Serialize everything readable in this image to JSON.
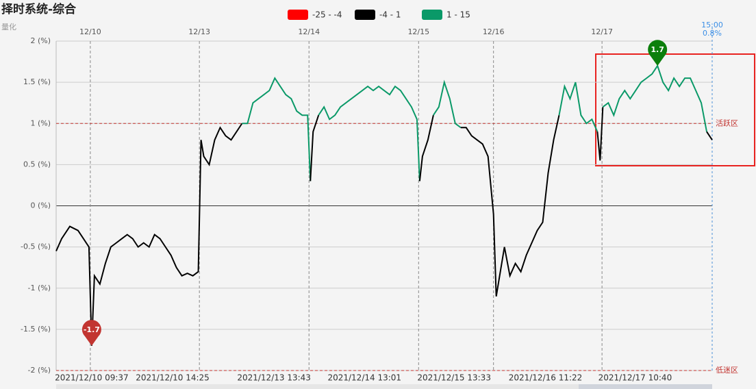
{
  "chart_data": {
    "type": "line",
    "title": "择时系统-综合",
    "subtitle": "量化",
    "pieces": [
      {
        "label": "-25 - -4",
        "min": -25,
        "max": -4,
        "color": "#ff0000"
      },
      {
        "label": "-4 - 1",
        "min": -4,
        "max": 1,
        "color": "#000000"
      },
      {
        "label": "1 - 15",
        "min": 1,
        "max": 15,
        "color": "#0a9968"
      }
    ],
    "xlim": [
      0,
      240
    ],
    "xticks": [
      {
        "value": 12.5,
        "label": "12/10"
      },
      {
        "value": 52.4,
        "label": "12/13"
      },
      {
        "value": 92.5,
        "label": "12/14"
      },
      {
        "value": 132.6,
        "label": "12/15"
      },
      {
        "value": 160,
        "label": "12/16"
      },
      {
        "value": 199.7,
        "label": "12/17"
      }
    ],
    "xticks_bottom": [
      {
        "value": 13,
        "label": "2021/12/10 09:37"
      },
      {
        "value": 42.6,
        "label": "2021/12/10 14:25"
      },
      {
        "value": 79.7,
        "label": "2021/12/13 13:43"
      },
      {
        "value": 112.8,
        "label": "2021/12/14 13:01"
      },
      {
        "value": 145.6,
        "label": "2021/12/15 13:33"
      },
      {
        "value": 179,
        "label": "2021/12/16 11:22"
      },
      {
        "value": 211.8,
        "label": "2021/12/17 10:40"
      }
    ],
    "ylim": [
      -2,
      2
    ],
    "yticks": [
      {
        "value": 2,
        "label": "2 (%)"
      },
      {
        "value": 1.5,
        "label": "1.5 (%)"
      },
      {
        "value": 1,
        "label": "1 (%)"
      },
      {
        "value": 0.5,
        "label": "0.5 (%)"
      },
      {
        "value": 0,
        "label": "0 (%)"
      },
      {
        "value": -0.5,
        "label": "-0.5 (%)"
      },
      {
        "value": -1,
        "label": "-1 (%)"
      },
      {
        "value": -1.5,
        "label": "-1.5 (%)"
      },
      {
        "value": -2,
        "label": "-2 (%)"
      }
    ],
    "grid": true,
    "series": [
      {
        "x": [
          0,
          2,
          5,
          8,
          10,
          12,
          13,
          14,
          16,
          18,
          20,
          22,
          24,
          26,
          28,
          30,
          32,
          34,
          36,
          38,
          40,
          42,
          44,
          46,
          48,
          50,
          52,
          53,
          54,
          56,
          58,
          60,
          62,
          64,
          66,
          68,
          70,
          72,
          74,
          76,
          78,
          80,
          82,
          84,
          86,
          88,
          90,
          92,
          93,
          94,
          96,
          98,
          100,
          102,
          104,
          106,
          108,
          110,
          112,
          114,
          116,
          118,
          120,
          122,
          124,
          126,
          128,
          130,
          132,
          133,
          134,
          136,
          138,
          140,
          142,
          144,
          146,
          148,
          150,
          152,
          154,
          156,
          158,
          160,
          161,
          162,
          164,
          166,
          168,
          170,
          172,
          174,
          176,
          178,
          180,
          182,
          184,
          186,
          188,
          190,
          192,
          194,
          196,
          198,
          199,
          200,
          202,
          204,
          206,
          208,
          210,
          212,
          214,
          216,
          218,
          220,
          222,
          224,
          226,
          228,
          230,
          232,
          234,
          236,
          238,
          240
        ],
        "values": [
          -0.55,
          -0.4,
          -0.25,
          -0.3,
          -0.4,
          -0.5,
          -1.7,
          -0.85,
          -0.95,
          -0.7,
          -0.5,
          -0.45,
          -0.4,
          -0.35,
          -0.4,
          -0.5,
          -0.45,
          -0.5,
          -0.35,
          -0.4,
          -0.5,
          -0.6,
          -0.75,
          -0.85,
          -0.82,
          -0.85,
          -0.8,
          0.8,
          0.6,
          0.5,
          0.8,
          0.95,
          0.85,
          0.8,
          0.9,
          1.0,
          1.0,
          1.25,
          1.3,
          1.35,
          1.4,
          1.55,
          1.45,
          1.35,
          1.3,
          1.15,
          1.1,
          1.1,
          0.3,
          0.9,
          1.1,
          1.2,
          1.05,
          1.1,
          1.2,
          1.25,
          1.3,
          1.35,
          1.4,
          1.45,
          1.4,
          1.45,
          1.4,
          1.35,
          1.45,
          1.4,
          1.3,
          1.2,
          1.05,
          0.3,
          0.6,
          0.8,
          1.1,
          1.2,
          1.5,
          1.3,
          1.0,
          0.95,
          0.95,
          0.85,
          0.8,
          0.75,
          0.6,
          -0.1,
          -1.1,
          -0.9,
          -0.5,
          -0.85,
          -0.7,
          -0.8,
          -0.6,
          -0.45,
          -0.3,
          -0.2,
          0.4,
          0.8,
          1.1,
          1.45,
          1.3,
          1.5,
          1.1,
          1.0,
          1.05,
          0.9,
          0.55,
          1.2,
          1.25,
          1.1,
          1.3,
          1.4,
          1.3,
          1.4,
          1.5,
          1.55,
          1.6,
          1.7,
          1.5,
          1.4,
          1.55,
          1.45,
          1.55,
          1.55,
          1.4,
          1.25,
          0.9,
          0.8
        ]
      }
    ],
    "mark_points": [
      {
        "x": 220,
        "value": 1.7,
        "color": "#0c7f0c"
      },
      {
        "x": 13,
        "value": -1.7,
        "color": "#c23531"
      }
    ],
    "mark_lines": [
      {
        "value": 1,
        "label": "活跃区"
      },
      {
        "value": -2,
        "label": "低迷区"
      }
    ],
    "cursor": {
      "x": 240,
      "time": "15:00",
      "label": "0.8%"
    }
  }
}
